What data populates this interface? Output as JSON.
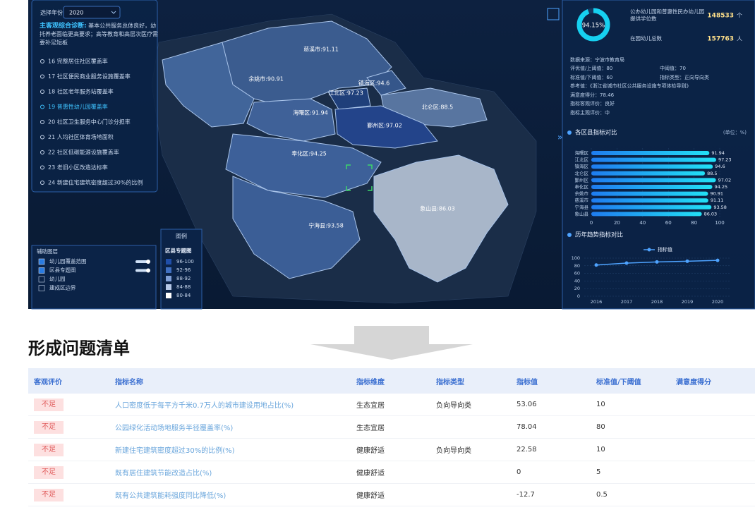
{
  "dashboard": {
    "filter": {
      "label": "选择年份",
      "year": "2020"
    },
    "diagnosis": {
      "title": "主客观综合诊断:",
      "text": "基本公共服务总体良好，幼托养老面临更高要求；高等教育和高层次医疗需要补足短板"
    },
    "indicators": [
      "16 完整居住社区覆盖率",
      "17 社区便民商业服务设施覆盖率",
      "18 社区老年服务站覆盖率",
      "19 普惠性幼儿园覆盖率",
      "20 社区卫生服务中心门诊分担率",
      "21 人均社区体育场地面积",
      "22 社区低碳能源设施覆盖率",
      "23 老旧小区改造达标率",
      "24 新建住宅建筑密度超过30%的比例"
    ],
    "map_labels": [
      "慈溪市:91.11",
      "余姚市:90.91",
      "镇海区:94.6",
      "江北区:97.23",
      "海曙区:91.94",
      "北仑区:88.5",
      "鄞州区:97.02",
      "奉化区:94.25",
      "象山县:86.03",
      "宁海县:93.58"
    ],
    "legend": {
      "title": "图例",
      "subtitle": "区县专题图",
      "classes": [
        "96-100",
        "92-96",
        "88-92",
        "84-88",
        "80-84"
      ]
    },
    "layers": {
      "title": "辅助图层",
      "items": [
        "幼儿园覆盖范围",
        "区县专题图",
        "幼儿园",
        "建成区边界"
      ]
    },
    "summary": {
      "rate": 94.15,
      "rate_label": "94.15%",
      "seats_label": "公办幼儿园和普惠性民办幼儿园提供学位数",
      "seats": 148533,
      "seats_unit": "个",
      "children_label": "在园幼儿总数",
      "children": 157763,
      "children_unit": "人"
    },
    "info": [
      "数据来源：宁波市教育局",
      "评优值/上阈值：80",
      "中阈值：70",
      "标准值/下阈值：60",
      "指标类型：正向导向类",
      "参考值：《浙江省城市社区公共服务设施专项体检导则》",
      "满意度得分：78.46",
      "指标客观评价：良好",
      "指标主观评价：中"
    ],
    "district_chart": {
      "type": "bar",
      "title": "各区县指标对比",
      "unit": "(单位：%)",
      "categories": [
        "海曙区",
        "江北区",
        "镇海区",
        "北仑区",
        "鄞州区",
        "奉化区",
        "余姚市",
        "慈溪市",
        "宁海县",
        "象山县"
      ],
      "values": [
        91.94,
        97.23,
        94.6,
        88.5,
        97.02,
        94.25,
        90.91,
        91.11,
        93.58,
        86.03
      ],
      "xlim": [
        0,
        100
      ],
      "xticks": [
        0,
        20,
        40,
        60,
        80,
        100
      ]
    },
    "trend_chart": {
      "type": "line",
      "title": "历年趋势指标对比",
      "x": [
        "2016",
        "2017",
        "2018",
        "2019",
        "2020"
      ],
      "series": [
        {
          "name": "指标值",
          "color": "#4ea3ff",
          "values": [
            82,
            87,
            90,
            92,
            94.15
          ]
        }
      ],
      "ylim": [
        0,
        100
      ],
      "yticks": [
        0,
        20,
        40,
        60,
        80,
        100
      ]
    }
  },
  "section_title": "形成问题清单",
  "table": {
    "headers": [
      "客观评价",
      "指标名称",
      "指标维度",
      "指标类型",
      "指标值",
      "标准值/下阈值",
      "满意度得分"
    ],
    "rows": [
      {
        "evaluation": "不足",
        "name": "人口密度低于每平方千米0.7万人的城市建设用地占比(%)",
        "dimension": "生态宜居",
        "type": "负向导向类",
        "value": 53.06,
        "standard": 10
      },
      {
        "evaluation": "不足",
        "name": "公园绿化活动场地服务半径覆盖率(%)",
        "dimension": "生态宜居",
        "value": 78.04,
        "standard": 80
      },
      {
        "evaluation": "不足",
        "name": "新建住宅建筑密度超过30%的比例(%)",
        "dimension": "健康舒适",
        "type": "负向导向类",
        "value": 22.58,
        "standard": 10
      },
      {
        "evaluation": "不足",
        "name": "既有居住建筑节能改造占比(%)",
        "dimension": "健康舒适",
        "value": 0,
        "standard": 5
      },
      {
        "evaluation": "不足",
        "name": "既有公共建筑能耗强度同比降低(%)",
        "dimension": "健康舒适",
        "value": -12.7,
        "standard": 0.5
      }
    ]
  }
}
